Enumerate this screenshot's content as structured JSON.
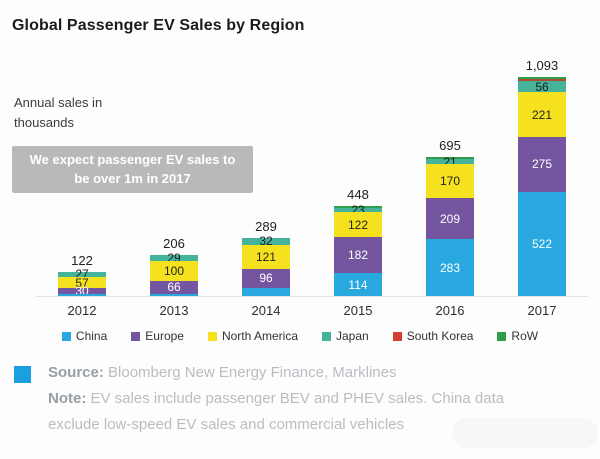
{
  "title": "Global Passenger EV Sales by Region",
  "axis_note": "Annual sales in thousands",
  "callout": "We expect passenger EV sales to be over 1m in 2017",
  "chart_data": {
    "type": "stacked_bar",
    "title": "Global Passenger EV Sales by Region",
    "unit_note": "Annual sales in thousands",
    "categories": [
      "2012",
      "2013",
      "2014",
      "2015",
      "2016",
      "2017"
    ],
    "totals": [
      122,
      206,
      289,
      448,
      695,
      1093
    ],
    "totals_display": [
      "122",
      "206",
      "289",
      "448",
      "695",
      "1,093"
    ],
    "legend_position": "bottom",
    "grid": false,
    "series": [
      {
        "name": "China",
        "color": "#29a8e0",
        "label_color": "#ffffff",
        "values": [
          8,
          11,
          40,
          114,
          283,
          522
        ],
        "labels": [
          null,
          null,
          null,
          "114",
          "283",
          "522"
        ]
      },
      {
        "name": "Europe",
        "color": "#7456a0",
        "label_color": "#ffffff",
        "values": [
          30,
          66,
          96,
          182,
          209,
          275
        ],
        "labels": [
          "30",
          "66",
          "96",
          "182",
          "209",
          "275"
        ]
      },
      {
        "name": "North America",
        "color": "#f6e11e",
        "label_color": "#222222",
        "values": [
          57,
          100,
          121,
          122,
          170,
          221
        ],
        "labels": [
          "57",
          "100",
          "121",
          "122",
          "170",
          "221"
        ]
      },
      {
        "name": "Japan",
        "color": "#44b399",
        "label_color": "#1c1c1c",
        "values": [
          27,
          29,
          32,
          23,
          21,
          56
        ],
        "labels": [
          "27",
          "29",
          "32",
          "23",
          "21",
          "56"
        ]
      },
      {
        "name": "South Korea",
        "color": "#ae4a36",
        "label_color": "#ffffff",
        "values": [
          0,
          0,
          0,
          0,
          0,
          13
        ],
        "labels": [
          null,
          null,
          null,
          null,
          null,
          null
        ]
      },
      {
        "name": "RoW",
        "color": "#2f9e4a",
        "label_color": "#ffffff",
        "values": [
          0,
          0,
          0,
          7,
          12,
          6
        ],
        "labels": [
          null,
          null,
          null,
          null,
          null,
          null
        ]
      }
    ],
    "legend_swatch_colors": {
      "South Korea": "#d23f33"
    }
  },
  "footer": {
    "source_label": "Source:",
    "source_text": " Bloomberg New Energy Finance, Marklines",
    "note_label": "Note:",
    "note_text": " EV sales include passenger BEV and PHEV sales. China data exclude low-speed EV sales and commercial vehicles",
    "bullet_color": "#1b9fde"
  }
}
